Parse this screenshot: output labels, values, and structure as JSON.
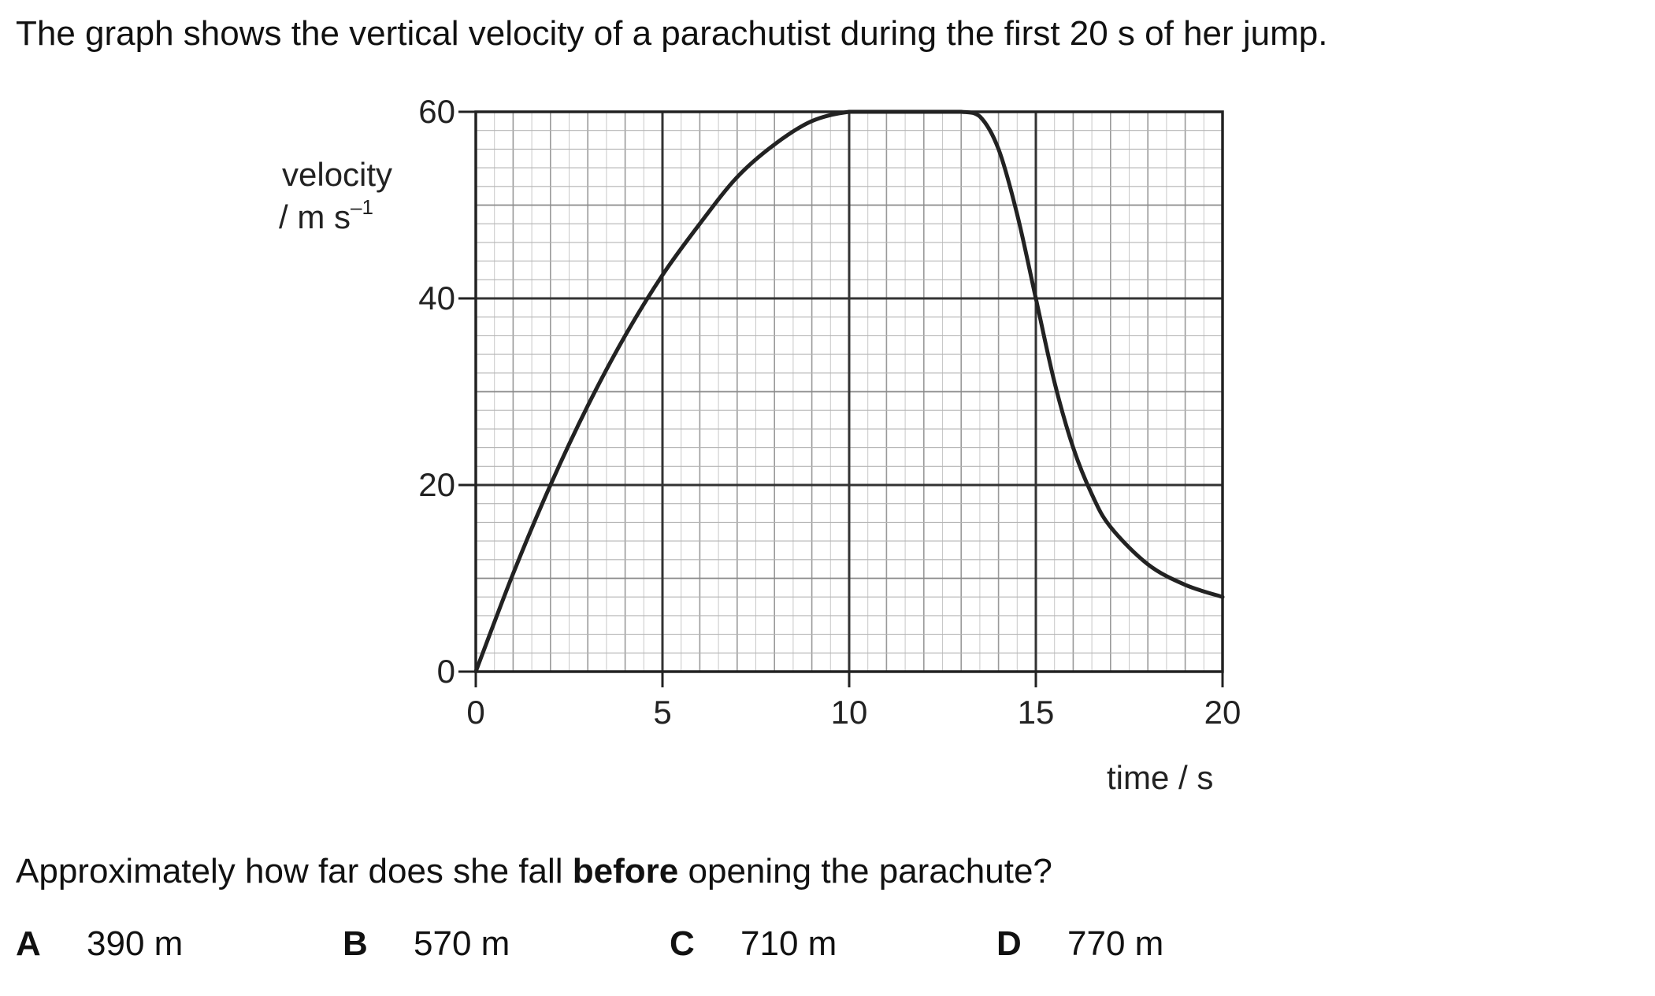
{
  "question": {
    "intro": "The graph shows the vertical velocity of a parachutist during the first 20 s of her jump.",
    "prompt_before": "Approximately how far does she fall ",
    "prompt_bold": "before",
    "prompt_after": " opening the parachute?",
    "options": [
      {
        "letter": "A",
        "text": "390 m"
      },
      {
        "letter": "B",
        "text": "570 m"
      },
      {
        "letter": "C",
        "text": "710 m"
      },
      {
        "letter": "D",
        "text": "770 m"
      }
    ]
  },
  "chart_data": {
    "type": "line",
    "title": "",
    "ylabel_line1": "velocity",
    "ylabel_line2": "/ m s",
    "ylabel_superscript": "–1",
    "xlabel": "time / s",
    "xlim": [
      0,
      20
    ],
    "ylim": [
      0,
      60
    ],
    "xticks": [
      0,
      5,
      10,
      15,
      20
    ],
    "yticks": [
      0,
      20,
      40,
      60
    ],
    "grid": true,
    "series": [
      {
        "x": [
          0,
          1,
          2,
          3,
          4,
          5,
          6,
          7,
          8,
          9,
          10,
          11,
          12,
          13,
          13.5,
          14,
          14.5,
          15,
          15.5,
          16,
          16.5,
          17,
          18,
          19,
          20
        ],
        "y": [
          0,
          10.5,
          20,
          28.5,
          36,
          42.5,
          48,
          53,
          56.5,
          59,
          60,
          60,
          60,
          60,
          59.5,
          56,
          49,
          40,
          31,
          24,
          19,
          15.5,
          11.5,
          9.3,
          8
        ]
      }
    ]
  }
}
